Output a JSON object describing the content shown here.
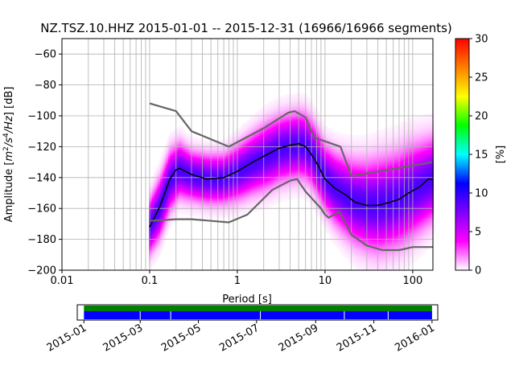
{
  "chart_data": {
    "type": "heatmap",
    "title": "NZ.TSZ.10.HHZ   2015-01-01 -- 2015-12-31  (16966/16966 segments)",
    "xlabel": "Period [s]",
    "ylabel_parts": [
      "Amplitude [",
      "m",
      "2",
      "/",
      "s",
      "4",
      "/",
      "Hz",
      "] [dB]"
    ],
    "x_scale": "log",
    "xlim": [
      0.01,
      170
    ],
    "ylim": [
      -200,
      -50
    ],
    "x_ticks": [
      {
        "value": 0.01,
        "label": "0.01"
      },
      {
        "value": 0.1,
        "label": "0.1"
      },
      {
        "value": 1,
        "label": "1"
      },
      {
        "value": 10,
        "label": "10"
      },
      {
        "value": 100,
        "label": "100"
      }
    ],
    "y_ticks": [
      {
        "value": -60,
        "label": "−60"
      },
      {
        "value": -80,
        "label": "−80"
      },
      {
        "value": -100,
        "label": "−100"
      },
      {
        "value": -120,
        "label": "−120"
      },
      {
        "value": -140,
        "label": "−140"
      },
      {
        "value": -160,
        "label": "−160"
      },
      {
        "value": -180,
        "label": "−180"
      },
      {
        "value": -200,
        "label": "−200"
      }
    ],
    "grid": true,
    "colorbar": {
      "label": "[%]",
      "range": [
        0,
        30
      ],
      "ticks": [
        {
          "value": 0,
          "label": "0"
        },
        {
          "value": 5,
          "label": "5"
        },
        {
          "value": 10,
          "label": "10"
        },
        {
          "value": 15,
          "label": "15"
        },
        {
          "value": 20,
          "label": "20"
        },
        {
          "value": 25,
          "label": "25"
        },
        {
          "value": 30,
          "label": "30"
        }
      ],
      "colors": [
        "#ffffff",
        "#ff00ff",
        "#7f00ff",
        "#0000ff",
        "#00ffff",
        "#00ff00",
        "#ffff00",
        "#ff7f00",
        "#ff0000"
      ]
    },
    "distribution": {
      "x": [
        0.1,
        0.13,
        0.17,
        0.22,
        0.3,
        0.45,
        0.7,
        1.0,
        1.5,
        2.2,
        3.0,
        4.0,
        5.0,
        6.0,
        7.0,
        8.5,
        10,
        13,
        17,
        22,
        30,
        40,
        55,
        70,
        90,
        120,
        170
      ],
      "center": [
        -172,
        -160,
        -142,
        -135,
        -139,
        -141,
        -141,
        -137,
        -131,
        -126,
        -122,
        -120,
        -119,
        -120,
        -124,
        -132,
        -140,
        -147,
        -152,
        -156,
        -158,
        -158,
        -156,
        -154,
        -150,
        -146,
        -141
      ],
      "spread": [
        10,
        11,
        11,
        10,
        9,
        9,
        9,
        10,
        11,
        12,
        12,
        12,
        12,
        12,
        12,
        12,
        12,
        13,
        14,
        15,
        16,
        17,
        17,
        17,
        17,
        16,
        15
      ],
      "max_density_percent": 9
    },
    "series": [
      {
        "name": "",
        "color": "#000000",
        "x": [
          0.1,
          0.13,
          0.17,
          0.2,
          0.22,
          0.3,
          0.45,
          0.7,
          1.0,
          1.5,
          2.2,
          3.0,
          4.0,
          5.0,
          6.0,
          7.0,
          8.5,
          10,
          13,
          17,
          22,
          30,
          40,
          55,
          70,
          90,
          120,
          150,
          170
        ],
        "y": [
          -172,
          -159,
          -141,
          -135,
          -134,
          -138,
          -141,
          -140,
          -136,
          -130,
          -125,
          -121,
          -119,
          -118,
          -120,
          -125,
          -133,
          -141,
          -147,
          -151,
          -156,
          -158,
          -158,
          -156,
          -154,
          -150,
          -146,
          -141,
          -141
        ]
      },
      {
        "name": "",
        "color": "#666666",
        "x": [
          0.1,
          0.2,
          0.3,
          0.8,
          2.0,
          3.8,
          4.5,
          6.0,
          7.5,
          15,
          20,
          170
        ],
        "y": [
          -92,
          -97,
          -110,
          -120,
          -108,
          -98,
          -97,
          -101,
          -114,
          -120,
          -139,
          -130
        ]
      },
      {
        "name": "",
        "color": "#666666",
        "x": [
          0.1,
          0.2,
          0.3,
          0.8,
          1.3,
          2.5,
          4.0,
          4.8,
          6.0,
          9.0,
          10.0,
          11.0,
          14.5,
          20,
          30,
          45,
          70,
          100,
          170
        ],
        "y": [
          -168,
          -167,
          -167,
          -169,
          -164,
          -148,
          -142,
          -141,
          -149,
          -160,
          -164,
          -166,
          -162,
          -177,
          -184,
          -187,
          -187,
          -185,
          -185
        ]
      }
    ]
  },
  "timeline": {
    "ticks": [
      "2015-01",
      "2015-03",
      "2015-05",
      "2015-07",
      "2015-09",
      "2015-11",
      "2016-01"
    ],
    "range": [
      "2014-12-25",
      "2016-01-07"
    ],
    "coverage": {
      "start": "2015-01-01",
      "end": "2016-01-01"
    },
    "gaps": [
      "2015-03-01",
      "2015-04-02",
      "2015-07-05",
      "2015-10-01",
      "2015-11-16"
    ],
    "colors": {
      "available": "#0000ff",
      "processed": "#008000"
    }
  }
}
